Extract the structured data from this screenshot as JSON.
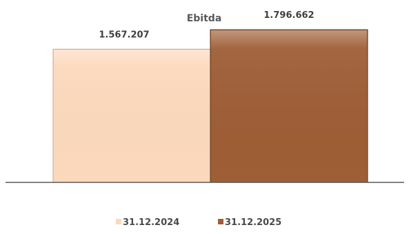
{
  "chart_data": {
    "type": "bar",
    "title": "Ebitda",
    "categories": [
      ""
    ],
    "series": [
      {
        "name": "31.12.2024",
        "values": [
          1567207
        ],
        "label": "1.567.207",
        "color": "#fcd9bc"
      },
      {
        "name": "31.12.2025",
        "values": [
          1796662
        ],
        "label": "1.796.662",
        "color": "#9e5e36"
      }
    ],
    "xlabel": "",
    "ylabel": "",
    "ylim": [
      0,
      2000000
    ],
    "grid": false,
    "legend_position": "bottom",
    "colors": {
      "title": "#595959",
      "labels": "#404040",
      "axis": "#595959",
      "bar_stroke_light": "#c9a88a",
      "bar_stroke_dark": "#5a3219"
    }
  }
}
